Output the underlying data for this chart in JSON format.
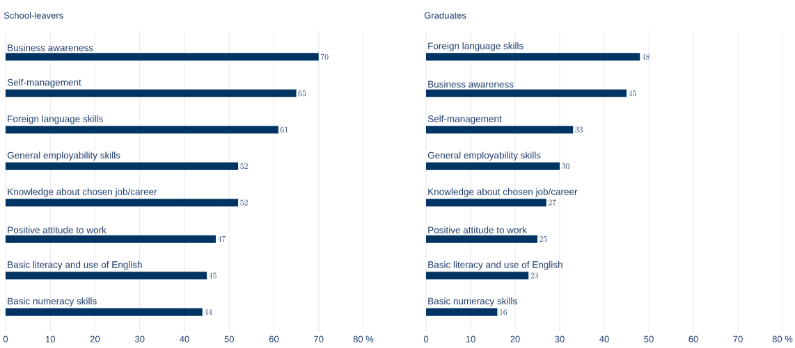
{
  "chart_data": [
    {
      "type": "bar",
      "orientation": "horizontal",
      "title": "School-leavers",
      "categories": [
        "Business awareness",
        "Self-management",
        "Foreign language skills",
        "General employability skills",
        "Knowledge about chosen job/career",
        "Positive attitude to work",
        "Basic literacy and use of English",
        "Basic numeracy skills"
      ],
      "values": [
        70,
        65,
        61,
        52,
        52,
        47,
        45,
        44
      ],
      "color": "#003462",
      "xlim": [
        0,
        80
      ],
      "xticks": [
        0,
        10,
        20,
        30,
        40,
        50,
        60,
        70,
        {
          "value": 80,
          "label": "80 %"
        }
      ],
      "grid": "x",
      "data_labels": true
    },
    {
      "type": "bar",
      "orientation": "horizontal",
      "title": "Graduates",
      "categories": [
        "Foreign language skills",
        "Business awareness",
        "Self-management",
        "General employability skills",
        "Knowledge about chosen job/career",
        "Positive attitude to work",
        "Basic literacy and use of English",
        "Basic numeracy skills"
      ],
      "values": [
        48,
        45,
        33,
        30,
        27,
        25,
        23,
        16
      ],
      "color": "#003462",
      "xlim": [
        0,
        80
      ],
      "xticks": [
        0,
        10,
        20,
        30,
        40,
        50,
        60,
        70,
        {
          "value": 80,
          "label": "80 %"
        }
      ],
      "grid": "x",
      "data_labels": true
    }
  ]
}
